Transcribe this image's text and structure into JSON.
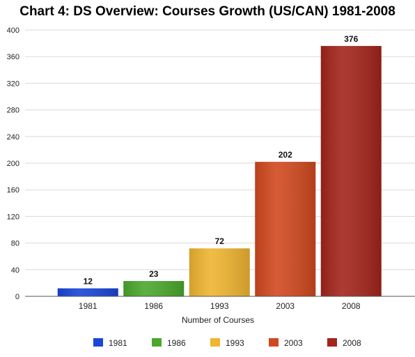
{
  "chart_data": {
    "type": "bar",
    "title": "Chart 4: DS Overview: Courses Growth (US/CAN) 1981-2008",
    "xlabel": "Number of Courses",
    "ylabel": "",
    "ylim": [
      0,
      400
    ],
    "yticks": [
      "0",
      "40",
      "80",
      "120",
      "160",
      "200",
      "240",
      "280",
      "320",
      "360",
      "400"
    ],
    "categories": [
      "1981",
      "1986",
      "1993",
      "2003",
      "2008"
    ],
    "values": [
      12,
      23,
      72,
      202,
      376
    ],
    "data_labels": [
      "12",
      "23",
      "72",
      "202",
      "376"
    ],
    "colors": [
      "#1a46d9",
      "#4aa82c",
      "#f0b531",
      "#d1491f",
      "#a3251c"
    ],
    "grid": true,
    "legend": {
      "position": "bottom",
      "entries": [
        "1981",
        "1986",
        "1993",
        "2003",
        "2008"
      ]
    }
  }
}
